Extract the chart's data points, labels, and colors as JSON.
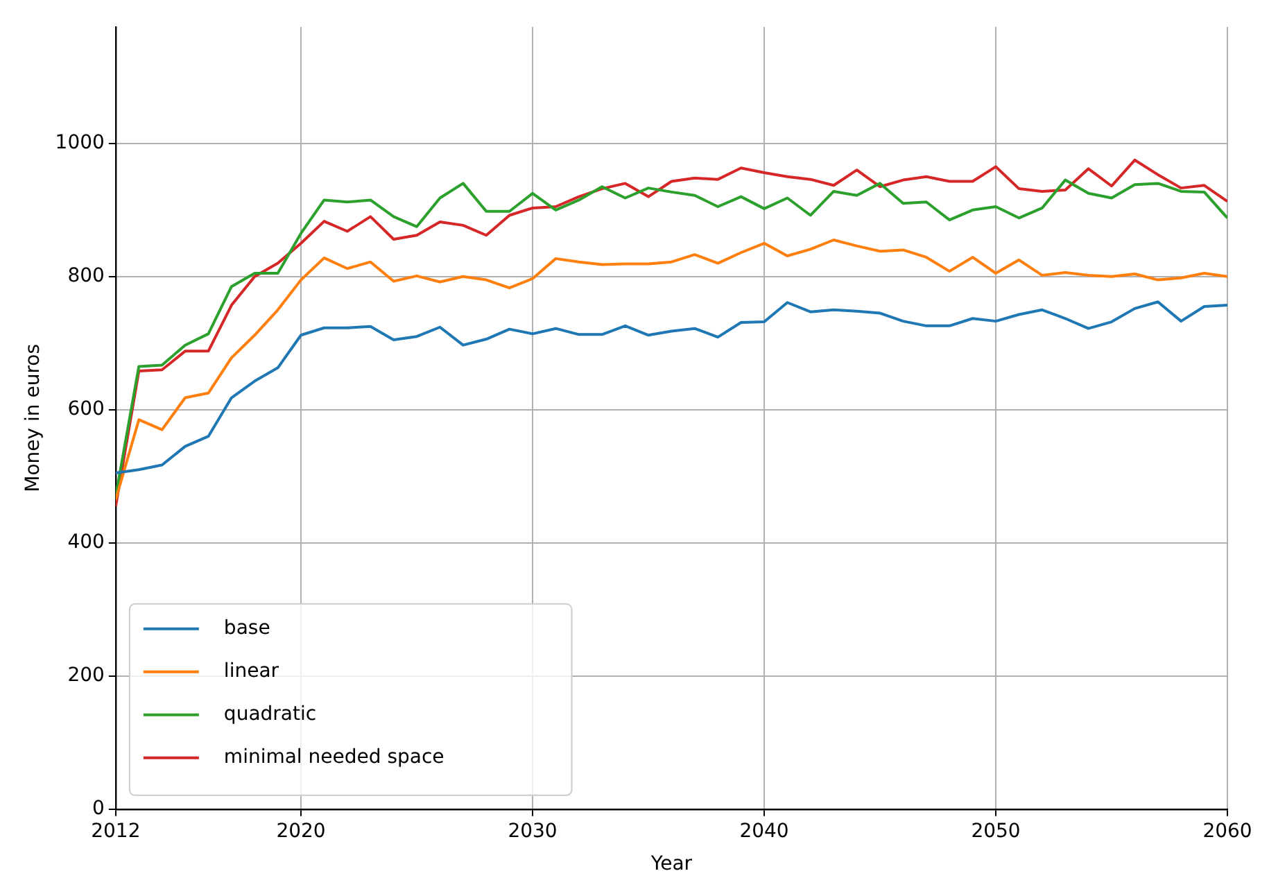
{
  "chart_data": {
    "type": "line",
    "xlabel": "Year",
    "ylabel": "Money in euros",
    "x": [
      2012,
      2013,
      2014,
      2015,
      2016,
      2017,
      2018,
      2019,
      2020,
      2021,
      2022,
      2023,
      2024,
      2025,
      2026,
      2027,
      2028,
      2029,
      2030,
      2031,
      2032,
      2033,
      2034,
      2035,
      2036,
      2037,
      2038,
      2039,
      2040,
      2041,
      2042,
      2043,
      2044,
      2045,
      2046,
      2047,
      2048,
      2049,
      2050,
      2051,
      2052,
      2053,
      2054,
      2055,
      2056,
      2057,
      2058,
      2059,
      2060
    ],
    "series": [
      {
        "name": "base",
        "color": "#1f77b4",
        "values": [
          505,
          510,
          517,
          545,
          560,
          618,
          643,
          663,
          712,
          723,
          723,
          725,
          705,
          710,
          724,
          697,
          706,
          721,
          714,
          722,
          713,
          713,
          726,
          712,
          718,
          722,
          709,
          731,
          732,
          761,
          747,
          750,
          748,
          745,
          733,
          726,
          726,
          737,
          733,
          743,
          750,
          737,
          722,
          732,
          752,
          762,
          733,
          755,
          757
        ]
      },
      {
        "name": "linear",
        "color": "#ff7f0e",
        "values": [
          465,
          585,
          570,
          618,
          625,
          678,
          712,
          750,
          795,
          828,
          812,
          822,
          793,
          801,
          792,
          800,
          795,
          783,
          797,
          827,
          822,
          818,
          819,
          819,
          822,
          833,
          820,
          836,
          850,
          831,
          841,
          855,
          846,
          838,
          840,
          829,
          808,
          829,
          805,
          825,
          802,
          806,
          802,
          800,
          804,
          795,
          798,
          805,
          800
        ]
      },
      {
        "name": "quadratic",
        "color": "#2ca02c",
        "values": [
          470,
          665,
          667,
          697,
          714,
          785,
          805,
          805,
          865,
          915,
          912,
          915,
          890,
          875,
          918,
          940,
          898,
          898,
          925,
          900,
          915,
          935,
          918,
          933,
          927,
          922,
          905,
          920,
          902,
          918,
          892,
          928,
          922,
          940,
          910,
          912,
          885,
          900,
          905,
          888,
          903,
          945,
          925,
          918,
          938,
          940,
          928,
          927,
          888
        ]
      },
      {
        "name": "minimal needed space",
        "color": "#d62728",
        "values": [
          455,
          658,
          660,
          688,
          688,
          757,
          800,
          820,
          850,
          883,
          868,
          890,
          856,
          862,
          882,
          877,
          862,
          892,
          903,
          905,
          920,
          932,
          940,
          920,
          943,
          948,
          946,
          963,
          956,
          950,
          946,
          937,
          960,
          935,
          945,
          950,
          943,
          943,
          965,
          932,
          928,
          930,
          962,
          936,
          975,
          953,
          933,
          937,
          913
        ]
      }
    ],
    "xlim": [
      2012,
      2060
    ],
    "xticks": [
      2012,
      2020,
      2030,
      2040,
      2050,
      2060
    ],
    "ylim": [
      0,
      1175
    ],
    "yticks": [
      0,
      200,
      400,
      600,
      800,
      1000
    ],
    "grid": true,
    "legend": "lower left",
    "marker": "none",
    "line_style": "solid"
  }
}
